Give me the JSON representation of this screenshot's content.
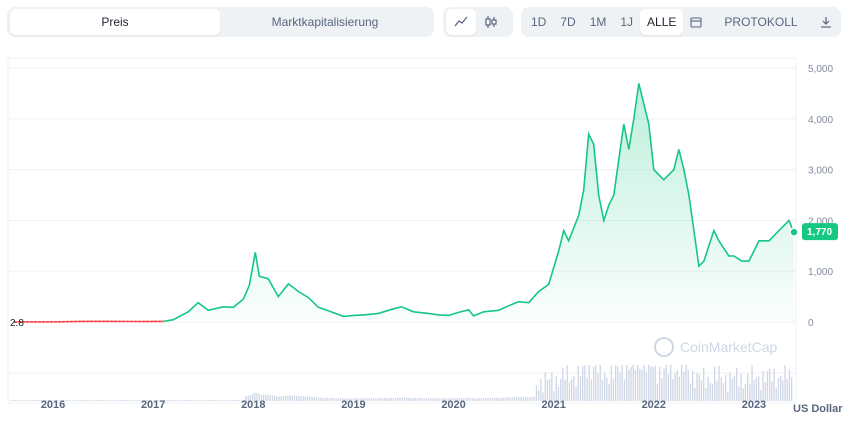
{
  "tabs": {
    "metric": [
      {
        "label": "Preis",
        "active": true
      },
      {
        "label": "Marktkapitalisierung",
        "active": false
      }
    ],
    "chart_type": [
      {
        "icon": "line-chart-icon",
        "active": true
      },
      {
        "icon": "candlestick-icon",
        "active": false
      }
    ],
    "ranges": [
      {
        "label": "1D",
        "active": false
      },
      {
        "label": "7D",
        "active": false
      },
      {
        "label": "1M",
        "active": false
      },
      {
        "label": "1J",
        "active": false
      },
      {
        "label": "ALLE",
        "active": true
      }
    ],
    "calendar_icon": "calendar-icon",
    "log_label": "PROTOKOLL",
    "download_icon": "download-icon"
  },
  "colors": {
    "accent": "#16c784",
    "baseline": "#ea3943",
    "grid": "#eff2f5",
    "axis_text": "#58667e",
    "volume": "#cfd6e4"
  },
  "watermark": "CoinMarketCap",
  "chart_data": {
    "type": "line",
    "title": "",
    "xlabel": "",
    "ylabel": "US Dollar",
    "x_ticks": [
      "2016",
      "2017",
      "2018",
      "2019",
      "2020",
      "2021",
      "2022",
      "2023"
    ],
    "y_ticks": [
      "0",
      "1,000",
      "2,000",
      "3,000",
      "4,000",
      "5,000"
    ],
    "ylim": [
      0,
      5200
    ],
    "baseline_label": "2.8",
    "current_price_label": "1,770",
    "current_price": 1770,
    "series": [
      {
        "points": [
          [
            2015.6,
            2.8
          ],
          [
            2016.0,
            1
          ],
          [
            2016.3,
            12
          ],
          [
            2016.6,
            11
          ],
          [
            2016.9,
            8
          ],
          [
            2017.1,
            11
          ],
          [
            2017.2,
            45
          ],
          [
            2017.35,
            200
          ],
          [
            2017.45,
            380
          ],
          [
            2017.55,
            230
          ],
          [
            2017.7,
            300
          ],
          [
            2017.8,
            290
          ],
          [
            2017.9,
            450
          ],
          [
            2017.96,
            720
          ],
          [
            2018.02,
            1370
          ],
          [
            2018.06,
            900
          ],
          [
            2018.15,
            850
          ],
          [
            2018.25,
            500
          ],
          [
            2018.35,
            750
          ],
          [
            2018.45,
            600
          ],
          [
            2018.55,
            480
          ],
          [
            2018.65,
            290
          ],
          [
            2018.75,
            220
          ],
          [
            2018.9,
            110
          ],
          [
            2019.0,
            130
          ],
          [
            2019.1,
            140
          ],
          [
            2019.25,
            170
          ],
          [
            2019.4,
            260
          ],
          [
            2019.48,
            300
          ],
          [
            2019.6,
            200
          ],
          [
            2019.75,
            170
          ],
          [
            2019.85,
            140
          ],
          [
            2019.95,
            130
          ],
          [
            2020.05,
            190
          ],
          [
            2020.15,
            240
          ],
          [
            2020.2,
            120
          ],
          [
            2020.3,
            200
          ],
          [
            2020.45,
            230
          ],
          [
            2020.55,
            320
          ],
          [
            2020.65,
            400
          ],
          [
            2020.75,
            380
          ],
          [
            2020.85,
            600
          ],
          [
            2020.95,
            740
          ],
          [
            2021.05,
            1400
          ],
          [
            2021.1,
            1800
          ],
          [
            2021.15,
            1600
          ],
          [
            2021.25,
            2100
          ],
          [
            2021.3,
            2600
          ],
          [
            2021.35,
            3700
          ],
          [
            2021.4,
            3500
          ],
          [
            2021.45,
            2500
          ],
          [
            2021.5,
            2000
          ],
          [
            2021.55,
            2300
          ],
          [
            2021.6,
            2500
          ],
          [
            2021.65,
            3200
          ],
          [
            2021.7,
            3900
          ],
          [
            2021.75,
            3400
          ],
          [
            2021.8,
            4000
          ],
          [
            2021.85,
            4700
          ],
          [
            2021.9,
            4300
          ],
          [
            2021.95,
            3900
          ],
          [
            2022.0,
            3000
          ],
          [
            2022.1,
            2800
          ],
          [
            2022.2,
            3000
          ],
          [
            2022.25,
            3400
          ],
          [
            2022.3,
            3000
          ],
          [
            2022.35,
            2500
          ],
          [
            2022.4,
            1800
          ],
          [
            2022.45,
            1100
          ],
          [
            2022.5,
            1200
          ],
          [
            2022.55,
            1500
          ],
          [
            2022.6,
            1800
          ],
          [
            2022.65,
            1600
          ],
          [
            2022.75,
            1300
          ],
          [
            2022.8,
            1300
          ],
          [
            2022.88,
            1200
          ],
          [
            2022.95,
            1200
          ],
          [
            2023.05,
            1600
          ],
          [
            2023.15,
            1600
          ],
          [
            2023.25,
            1800
          ],
          [
            2023.3,
            1900
          ],
          [
            2023.35,
            2000
          ],
          [
            2023.38,
            1850
          ],
          [
            2023.4,
            1770
          ]
        ]
      }
    ]
  }
}
